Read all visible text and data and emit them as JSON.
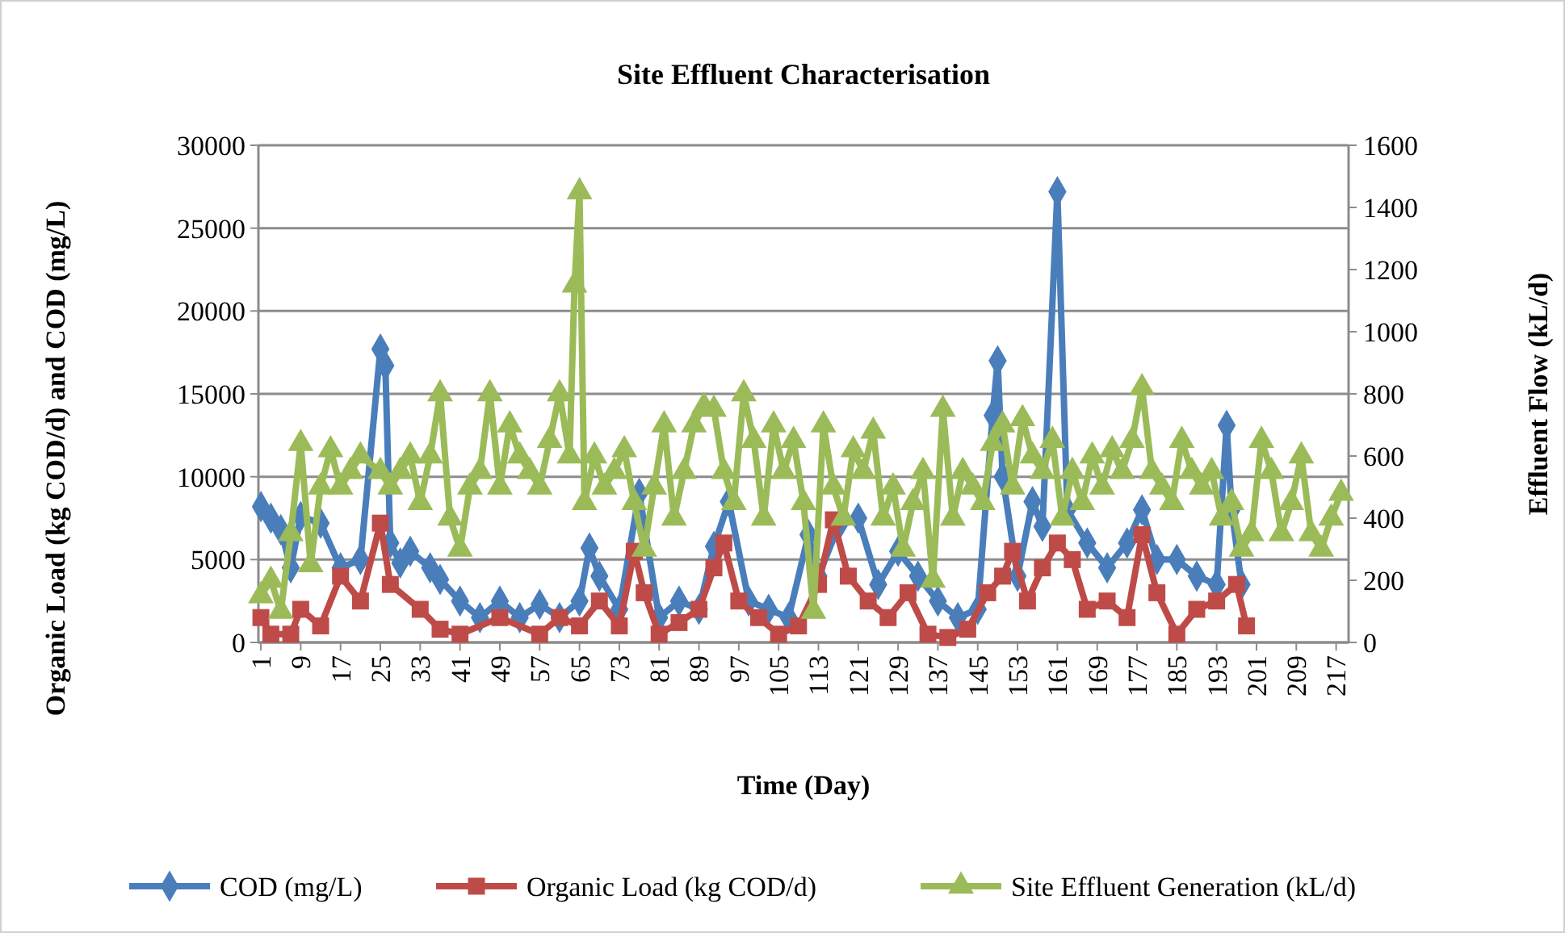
{
  "chart_data": {
    "type": "line",
    "title": "Site Effluent Characterisation",
    "xlabel": "Time (Day)",
    "ylabel": "Organic Load (kg COD/d) and COD (mg/L)",
    "y2label": "Effluent Flow (kL/d)",
    "xlim": [
      0.5,
      219.5
    ],
    "xticks": [
      1,
      9,
      17,
      25,
      33,
      41,
      49,
      57,
      65,
      73,
      81,
      89,
      97,
      105,
      113,
      121,
      129,
      137,
      145,
      153,
      161,
      169,
      177,
      185,
      193,
      201,
      209,
      217
    ],
    "ylim": [
      0,
      30000
    ],
    "yticks": [
      0,
      5000,
      10000,
      15000,
      20000,
      25000,
      30000
    ],
    "y2lim": [
      0,
      1600
    ],
    "y2ticks": [
      0,
      200,
      400,
      600,
      800,
      1000,
      1200,
      1400,
      1600
    ],
    "grid": "y",
    "legend": "bottom",
    "series": [
      {
        "name": "COD (mg/L)",
        "color": "#4a7ebb",
        "marker": "diamond",
        "x": [
          1,
          3,
          5,
          7,
          9,
          13,
          17,
          21,
          25,
          26,
          27,
          29,
          31,
          35,
          37,
          41,
          45,
          49,
          53,
          57,
          61,
          65,
          67,
          69,
          73,
          77,
          81,
          85,
          89,
          92,
          95,
          99,
          103,
          107,
          111,
          113,
          117,
          121,
          125,
          129,
          133,
          137,
          141,
          145,
          148,
          149,
          150,
          153,
          156,
          158,
          161,
          163,
          167,
          171,
          175,
          178,
          181,
          185,
          189,
          193,
          195,
          196,
          198
        ],
        "values": [
          8200,
          7500,
          6800,
          4500,
          7600,
          7200,
          4500,
          5000,
          17700,
          16700,
          6000,
          4800,
          5500,
          4500,
          3800,
          2500,
          1500,
          2500,
          1500,
          2300,
          1500,
          2500,
          5700,
          4000,
          2000,
          9000,
          1500,
          2500,
          2000,
          5800,
          8500,
          2500,
          2000,
          1500,
          6500,
          4000,
          7000,
          7500,
          3500,
          5500,
          4000,
          2500,
          1500,
          2000,
          13700,
          17000,
          10000,
          4000,
          8500,
          7000,
          27200,
          8000,
          6000,
          4500,
          6000,
          8000,
          5000,
          5000,
          4000,
          3500,
          13100,
          8000,
          3500
        ]
      },
      {
        "name": "Organic Load (kg COD/d)",
        "color": "#be4b48",
        "marker": "square",
        "x": [
          1,
          3,
          7,
          9,
          13,
          17,
          21,
          25,
          27,
          33,
          37,
          41,
          49,
          57,
          61,
          65,
          69,
          73,
          76,
          78,
          81,
          85,
          89,
          92,
          94,
          97,
          101,
          105,
          109,
          113,
          116,
          119,
          123,
          127,
          131,
          135,
          139,
          143,
          147,
          150,
          152,
          155,
          158,
          161,
          164,
          167,
          171,
          175,
          178,
          181,
          185,
          189,
          193,
          197,
          199
        ],
        "values": [
          1500,
          500,
          500,
          2000,
          1000,
          4000,
          2500,
          7200,
          3500,
          2000,
          800,
          500,
          1500,
          500,
          1500,
          1000,
          2500,
          1000,
          5500,
          3000,
          500,
          1200,
          2000,
          4500,
          6000,
          2500,
          1500,
          500,
          1000,
          3500,
          7400,
          4000,
          2500,
          1500,
          3000,
          500,
          300,
          800,
          3000,
          4000,
          5500,
          2500,
          4500,
          6000,
          5000,
          2000,
          2500,
          1500,
          6500,
          3000,
          500,
          2000,
          2500,
          3500,
          1000
        ]
      },
      {
        "name": "Site Effluent Generation (kL/d)",
        "color": "#9bbb59",
        "marker": "triangle",
        "axis": "y2",
        "x": [
          1,
          3,
          5,
          7,
          9,
          11,
          13,
          15,
          17,
          19,
          21,
          25,
          27,
          29,
          31,
          33,
          35,
          37,
          39,
          41,
          43,
          45,
          47,
          49,
          51,
          53,
          55,
          57,
          59,
          61,
          63,
          64,
          65,
          66,
          68,
          70,
          72,
          74,
          76,
          78,
          80,
          82,
          84,
          86,
          88,
          90,
          92,
          94,
          96,
          98,
          100,
          102,
          104,
          106,
          108,
          110,
          112,
          114,
          116,
          118,
          120,
          122,
          124,
          126,
          128,
          130,
          132,
          134,
          136,
          138,
          140,
          142,
          144,
          146,
          148,
          150,
          152,
          154,
          156,
          158,
          160,
          162,
          164,
          166,
          168,
          170,
          172,
          174,
          176,
          178,
          180,
          182,
          184,
          186,
          188,
          190,
          192,
          194,
          196,
          198,
          200,
          202,
          204,
          206,
          208,
          210,
          212,
          214,
          216,
          218
        ],
        "values": [
          150,
          200,
          100,
          350,
          640,
          250,
          500,
          620,
          500,
          550,
          600,
          550,
          500,
          550,
          600,
          450,
          600,
          800,
          400,
          300,
          500,
          550,
          800,
          500,
          700,
          600,
          550,
          500,
          650,
          800,
          600,
          1150,
          1450,
          450,
          600,
          500,
          550,
          620,
          450,
          300,
          500,
          700,
          400,
          550,
          700,
          760,
          750,
          550,
          450,
          800,
          650,
          400,
          700,
          550,
          650,
          450,
          100,
          700,
          500,
          400,
          620,
          550,
          680,
          400,
          500,
          300,
          450,
          550,
          200,
          750,
          400,
          550,
          500,
          450,
          640,
          700,
          500,
          720,
          600,
          550,
          650,
          400,
          550,
          450,
          600,
          500,
          620,
          550,
          650,
          820,
          550,
          500,
          450,
          650,
          550,
          500,
          550,
          400,
          450,
          300,
          350,
          650,
          550,
          350,
          450,
          600,
          350,
          300,
          400,
          480
        ]
      }
    ]
  }
}
